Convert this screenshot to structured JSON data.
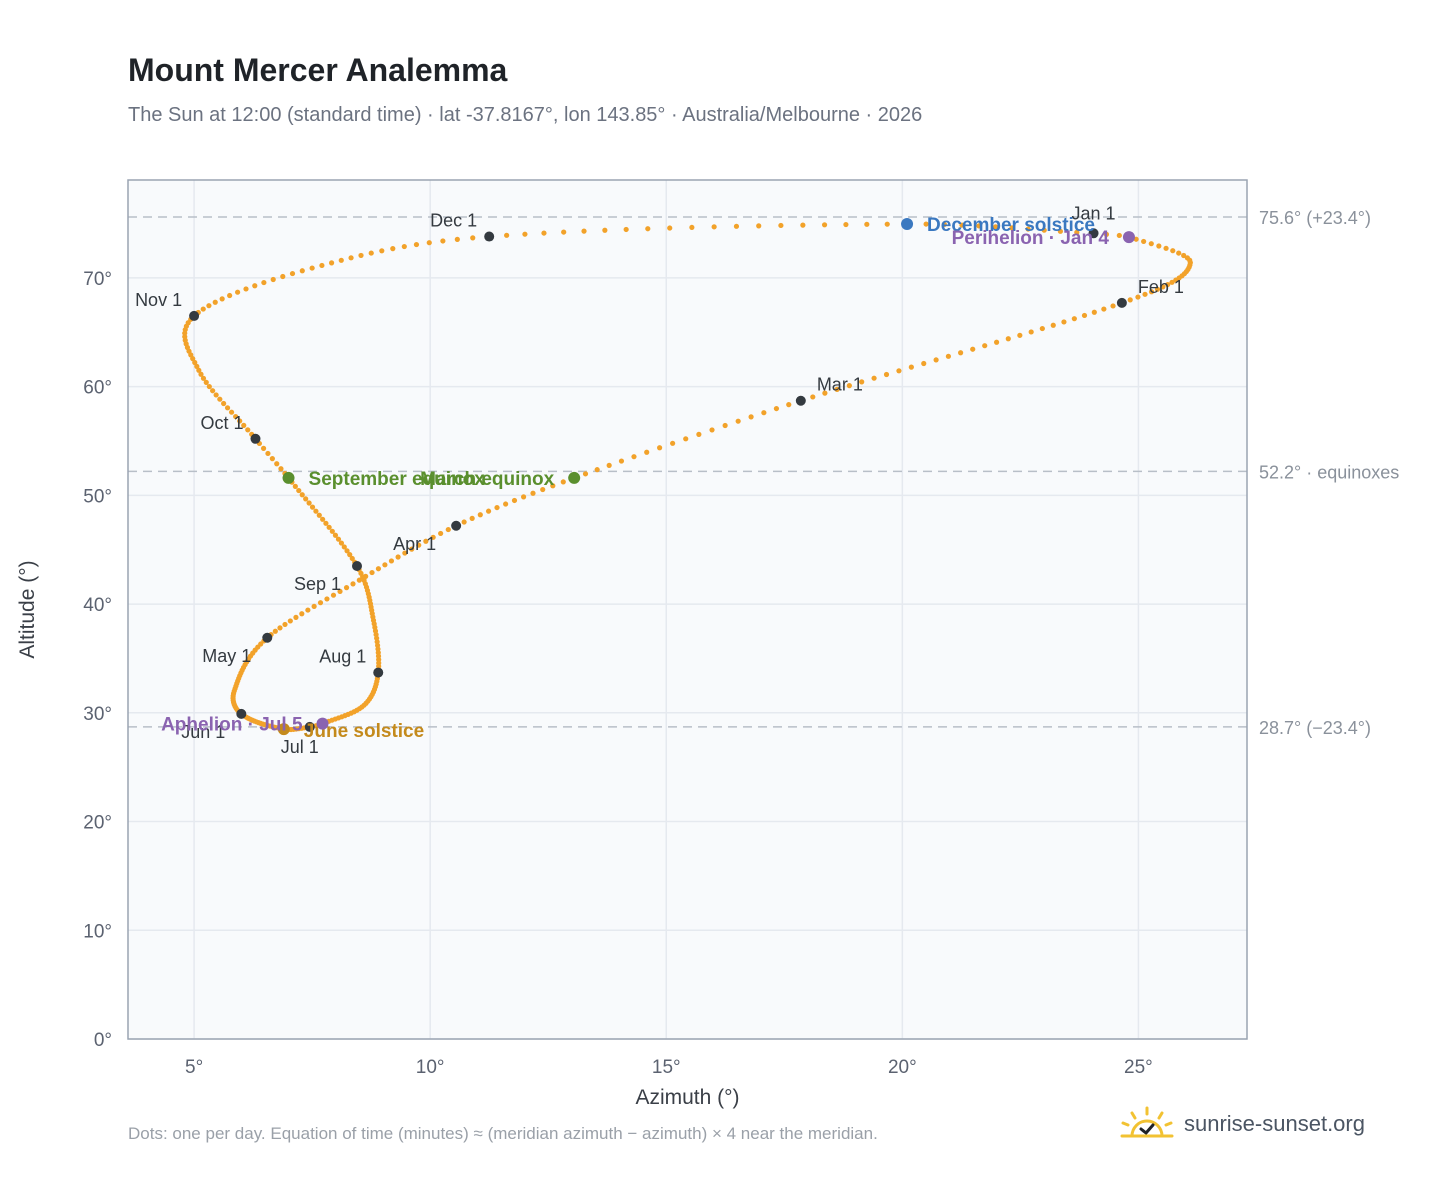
{
  "header": {
    "title": "Mount Mercer Analemma",
    "subtitle": "The Sun at 12:00 (standard time) · lat -37.8167°, lon 143.85° · Australia/Melbourne · 2026"
  },
  "footer": {
    "note": "Dots: one per day. Equation of time (minutes) ≈ (meridian azimuth − azimuth) × 4 near the meridian.",
    "brand": "sunrise-sunset.org",
    "brand_icon": "sun-check-icon"
  },
  "colors": {
    "path": "#f2a22a",
    "month_dot": "#343a40",
    "equinox": "#5a8f2e",
    "december_solstice": "#3a78c0",
    "june_solstice": "#c48a1c",
    "apsis": "#8a63b0",
    "plot_bg": "#f8fafc",
    "grid": "#e5e9ef",
    "axis_border": "#9aa4b2",
    "reference_line": "#b8bfc8"
  },
  "chart_data": {
    "type": "scatter",
    "xlabel": "Azimuth (°)",
    "ylabel": "Altitude (°)",
    "xlim": [
      3.6,
      27.3
    ],
    "ylim": [
      0,
      79
    ],
    "xticks": [
      5,
      10,
      15,
      20,
      25
    ],
    "yticks": [
      0,
      10,
      20,
      30,
      40,
      50,
      60,
      70
    ],
    "xtick_labels": [
      "5°",
      "10°",
      "15°",
      "20°",
      "25°"
    ],
    "ytick_labels": [
      "0°",
      "10°",
      "20°",
      "30°",
      "40°",
      "50°",
      "60°",
      "70°"
    ],
    "grid": true,
    "reference_lines": [
      {
        "y": 75.6,
        "label": "75.6° (+23.4°)"
      },
      {
        "y": 52.2,
        "label": "52.2° · equinoxes"
      },
      {
        "y": 28.7,
        "label": "28.7° (−23.4°)"
      }
    ],
    "path_keypoints": [
      {
        "doy": 1,
        "az": 24.05,
        "alt": 74.1
      },
      {
        "doy": 4,
        "az": 24.8,
        "alt": 73.75
      },
      {
        "doy": 15,
        "az": 26.1,
        "alt": 71.4
      },
      {
        "doy": 32,
        "az": 24.65,
        "alt": 67.7
      },
      {
        "doy": 60,
        "az": 17.85,
        "alt": 58.7
      },
      {
        "doy": 78,
        "az": 13.05,
        "alt": 51.6
      },
      {
        "doy": 91,
        "az": 10.55,
        "alt": 47.2
      },
      {
        "doy": 105,
        "az": 8.5,
        "alt": 42.2
      },
      {
        "doy": 121,
        "az": 6.55,
        "alt": 36.9
      },
      {
        "doy": 140,
        "az": 5.85,
        "alt": 32.0
      },
      {
        "doy": 152,
        "az": 6.0,
        "alt": 29.9
      },
      {
        "doy": 172,
        "az": 6.9,
        "alt": 28.5
      },
      {
        "doy": 182,
        "az": 7.45,
        "alt": 28.7
      },
      {
        "doy": 186,
        "az": 7.72,
        "alt": 29.0
      },
      {
        "doy": 200,
        "az": 8.6,
        "alt": 30.7
      },
      {
        "doy": 213,
        "az": 8.9,
        "alt": 33.7
      },
      {
        "doy": 228,
        "az": 8.8,
        "alt": 38.5
      },
      {
        "doy": 244,
        "az": 8.45,
        "alt": 43.5
      },
      {
        "doy": 266,
        "az": 7.0,
        "alt": 51.6
      },
      {
        "doy": 274,
        "az": 6.3,
        "alt": 55.2
      },
      {
        "doy": 290,
        "az": 5.1,
        "alt": 61.5
      },
      {
        "doy": 305,
        "az": 5.0,
        "alt": 66.5
      },
      {
        "doy": 320,
        "az": 7.5,
        "alt": 70.9
      },
      {
        "doy": 335,
        "az": 11.25,
        "alt": 73.8
      },
      {
        "doy": 355,
        "az": 20.1,
        "alt": 74.95
      },
      {
        "doy": 366,
        "az": 24.05,
        "alt": 74.1
      }
    ],
    "month_markers": [
      {
        "label": "Jan 1",
        "az": 24.05,
        "alt": 74.1,
        "label_pos": "above"
      },
      {
        "label": "Feb 1",
        "az": 24.65,
        "alt": 67.7,
        "label_pos": "above-right"
      },
      {
        "label": "Mar 1",
        "az": 17.85,
        "alt": 58.7,
        "label_pos": "above-right"
      },
      {
        "label": "Apr 1",
        "az": 10.55,
        "alt": 47.2,
        "label_pos": "above-left-far"
      },
      {
        "label": "May 1",
        "az": 6.55,
        "alt": 36.9,
        "label_pos": "below-left"
      },
      {
        "label": "Jun 1",
        "az": 6.0,
        "alt": 29.9,
        "label_pos": "below-left"
      },
      {
        "label": "Jul 1",
        "az": 7.45,
        "alt": 28.7,
        "label_pos": "below"
      },
      {
        "label": "Aug 1",
        "az": 8.9,
        "alt": 33.7,
        "label_pos": "above-left"
      },
      {
        "label": "Sep 1",
        "az": 8.45,
        "alt": 43.5,
        "label_pos": "below-left"
      },
      {
        "label": "Oct 1",
        "az": 6.3,
        "alt": 55.2,
        "label_pos": "above-left"
      },
      {
        "label": "Nov 1",
        "az": 5.0,
        "alt": 66.5,
        "label_pos": "above-left"
      },
      {
        "label": "Dec 1",
        "az": 11.25,
        "alt": 73.8,
        "label_pos": "above-left"
      }
    ],
    "events": [
      {
        "label": "March equinox",
        "az": 13.05,
        "alt": 51.6,
        "kind": "equinox",
        "label_pos": "left"
      },
      {
        "label": "September equinox",
        "az": 7.0,
        "alt": 51.6,
        "kind": "equinox",
        "label_pos": "right"
      },
      {
        "label": "December solstice",
        "az": 20.1,
        "alt": 74.95,
        "kind": "december_solstice",
        "label_pos": "right"
      },
      {
        "label": "June solstice",
        "az": 6.9,
        "alt": 28.5,
        "kind": "june_solstice",
        "label_pos": "right"
      },
      {
        "label": "Perihelion · Jan 4",
        "az": 24.8,
        "alt": 73.75,
        "kind": "apsis",
        "label_pos": "left"
      },
      {
        "label": "Aphelion · Jul 5",
        "az": 7.72,
        "alt": 29.0,
        "kind": "apsis",
        "label_pos": "left"
      }
    ]
  }
}
